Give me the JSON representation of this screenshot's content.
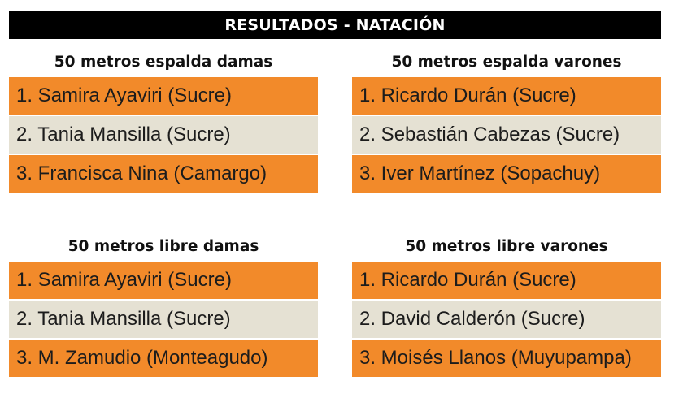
{
  "header": {
    "title": "RESULTADOS - NATACIÓN"
  },
  "colors": {
    "header_bg": "#000000",
    "row_orange": "#f28a2a",
    "row_beige": "#e5e1d3"
  },
  "events": [
    {
      "title": "50 metros espalda damas",
      "results": [
        "1. Samira Ayaviri (Sucre)",
        "2. Tania Mansilla (Sucre)",
        "3. Francisca Nina (Camargo)"
      ]
    },
    {
      "title": "50 metros espalda varones",
      "results": [
        "1. Ricardo Durán (Sucre)",
        "2. Sebastián Cabezas (Sucre)",
        "3. Iver Martínez (Sopachuy)"
      ]
    },
    {
      "title": "50 metros libre damas",
      "results": [
        "1. Samira Ayaviri (Sucre)",
        "2. Tania Mansilla (Sucre)",
        "3. M. Zamudio (Monteagudo)"
      ]
    },
    {
      "title": "50 metros libre varones",
      "results": [
        "1. Ricardo Durán (Sucre)",
        "2. David Calderón (Sucre)",
        "3. Moisés Llanos (Muyupampa)"
      ]
    }
  ]
}
